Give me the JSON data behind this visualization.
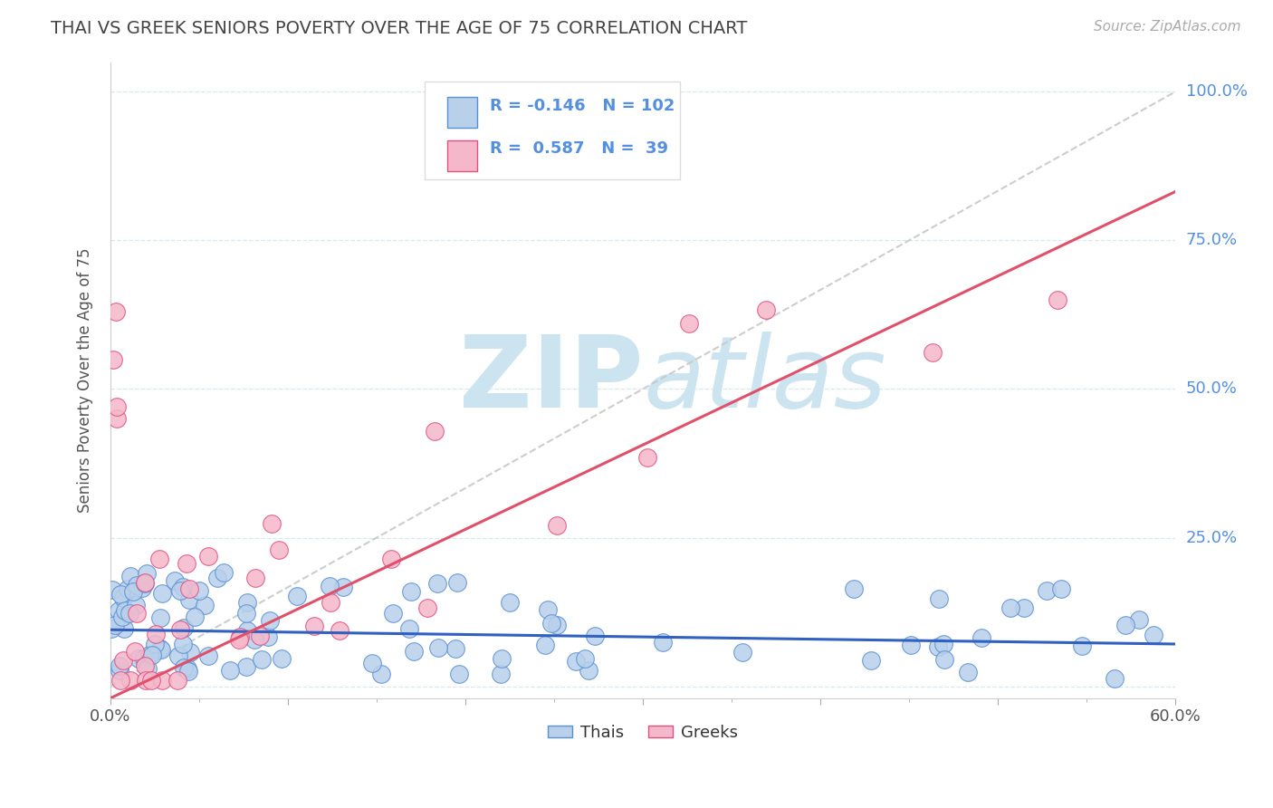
{
  "title": "THAI VS GREEK SENIORS POVERTY OVER THE AGE OF 75 CORRELATION CHART",
  "source": "Source: ZipAtlas.com",
  "ylabel": "Seniors Poverty Over the Age of 75",
  "xlim": [
    0.0,
    0.6
  ],
  "ylim": [
    -0.02,
    1.05
  ],
  "xtick_vals": [
    0.0,
    0.1,
    0.2,
    0.3,
    0.4,
    0.5,
    0.6
  ],
  "xticklabels": [
    "0.0%",
    "",
    "",
    "",
    "",
    "",
    "60.0%"
  ],
  "ytick_vals": [
    0.0,
    0.25,
    0.5,
    0.75,
    1.0
  ],
  "yticklabels_right": [
    "",
    "25.0%",
    "50.0%",
    "75.0%",
    "100.0%"
  ],
  "thai_R": -0.146,
  "thai_N": 102,
  "greek_R": 0.587,
  "greek_N": 39,
  "thai_color": "#b8d0ea",
  "greek_color": "#f5b8cb",
  "thai_edge_color": "#5b8fd4",
  "greek_edge_color": "#e05080",
  "thai_line_color": "#3060c0",
  "greek_line_color": "#e0506a",
  "diagonal_color": "#c8c8c8",
  "watermark_color": "#cce4f0",
  "background_color": "#ffffff",
  "grid_color": "#d8e8f0",
  "title_color": "#444444",
  "source_color": "#aaaaaa",
  "ylabel_color": "#555555",
  "tick_label_color_x": "#555555",
  "tick_label_color_y": "#5590e0",
  "legend_edge_color": "#dddddd",
  "legend_text_color": "#5590e0",
  "thai_line_intercept": 0.095,
  "thai_line_slope": -0.04,
  "greek_line_intercept": -0.02,
  "greek_line_slope": 1.42
}
